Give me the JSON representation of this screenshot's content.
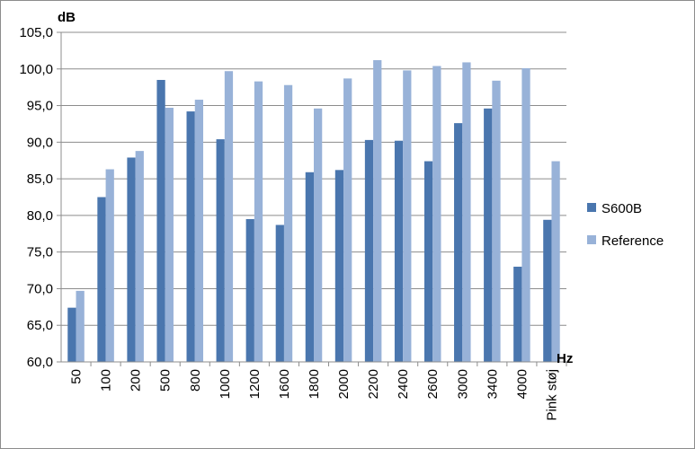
{
  "chart_data": {
    "type": "bar",
    "ylabel": "dB",
    "xlabel": "Hz",
    "ylim": [
      60,
      105
    ],
    "ytick_step": 5,
    "grid": true,
    "legend_position": "right",
    "categories": [
      "50",
      "100",
      "200",
      "500",
      "800",
      "1000",
      "1200",
      "1600",
      "1800",
      "2000",
      "2200",
      "2400",
      "2600",
      "3000",
      "3400",
      "4000",
      "Pink støj"
    ],
    "series": [
      {
        "name": "S600B",
        "color": "#4a76ae",
        "values": [
          67.4,
          82.5,
          87.9,
          98.5,
          94.2,
          90.4,
          79.5,
          78.7,
          85.9,
          86.2,
          90.3,
          90.2,
          87.4,
          92.6,
          94.6,
          73.0,
          79.4
        ]
      },
      {
        "name": "Reference",
        "color": "#98b2d8",
        "values": [
          69.7,
          86.3,
          88.8,
          94.7,
          95.8,
          99.7,
          98.3,
          97.8,
          94.6,
          98.7,
          101.2,
          99.8,
          100.4,
          100.9,
          98.4,
          100.1,
          87.4
        ]
      }
    ]
  }
}
